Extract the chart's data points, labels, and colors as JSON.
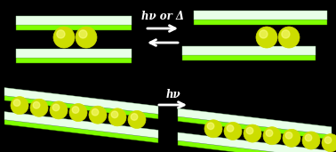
{
  "background_color": "#000000",
  "plate_top_face": "#e8ffe8",
  "plate_side_face": "#7fff00",
  "plate_bottom_face": "#44bb00",
  "sphere_color": "#ccdd00",
  "sphere_highlight": "#ffff88",
  "arrow_color": "#ffffff",
  "text_color": "#ffffff",
  "label_top": "hν or Δ",
  "label_bottom": "hν",
  "fig_width": 3.78,
  "fig_height": 1.71,
  "dpi": 100
}
